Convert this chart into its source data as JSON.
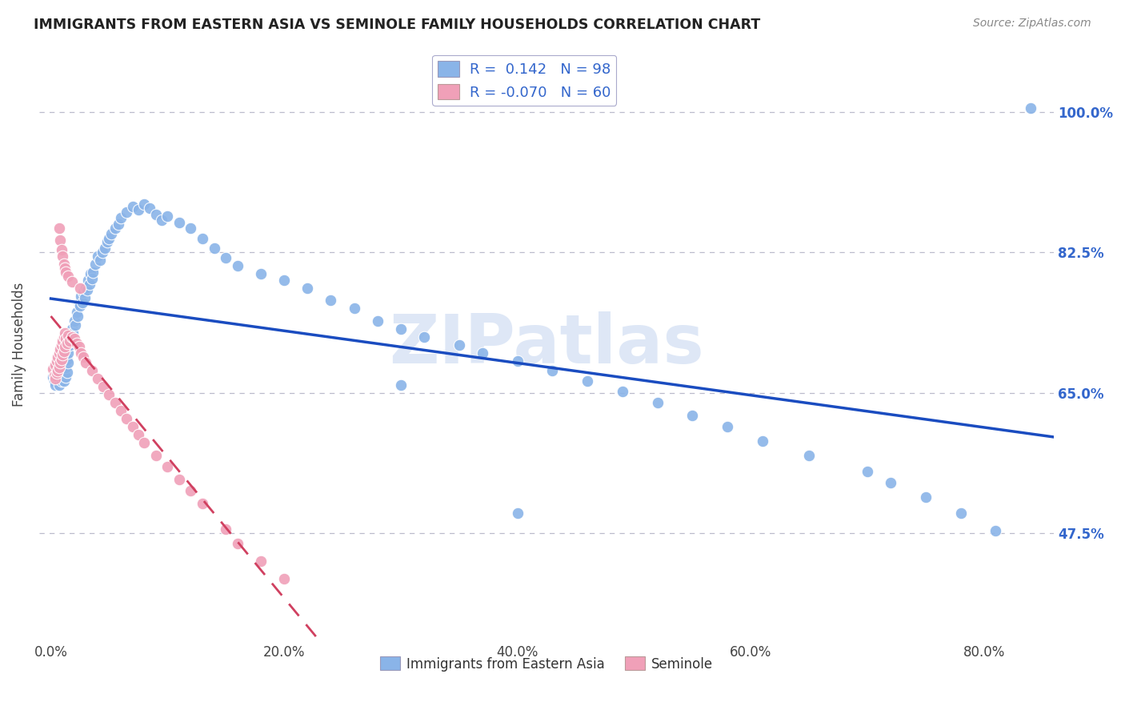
{
  "title": "IMMIGRANTS FROM EASTERN ASIA VS SEMINOLE FAMILY HOUSEHOLDS CORRELATION CHART",
  "source": "Source: ZipAtlas.com",
  "ylabel": "Family Households",
  "x_tick_labels": [
    "0.0%",
    "20.0%",
    "40.0%",
    "60.0%",
    "80.0%"
  ],
  "x_tick_positions": [
    0.0,
    0.2,
    0.4,
    0.6,
    0.8
  ],
  "y_tick_labels": [
    "47.5%",
    "65.0%",
    "82.5%",
    "100.0%"
  ],
  "y_tick_positions": [
    0.475,
    0.65,
    0.825,
    1.0
  ],
  "xlim": [
    -0.01,
    0.86
  ],
  "ylim": [
    0.34,
    1.08
  ],
  "legend_label_blue": "Immigrants from Eastern Asia",
  "legend_label_pink": "Seminole",
  "R_blue": 0.142,
  "N_blue": 98,
  "R_pink": -0.07,
  "N_pink": 60,
  "blue_color": "#8AB4E8",
  "pink_color": "#F0A0B8",
  "line_blue": "#1A4CC0",
  "line_pink": "#D04060",
  "watermark": "ZIPatlas",
  "blue_points_x": [
    0.002,
    0.003,
    0.004,
    0.004,
    0.005,
    0.006,
    0.007,
    0.007,
    0.008,
    0.008,
    0.009,
    0.009,
    0.01,
    0.01,
    0.011,
    0.011,
    0.012,
    0.012,
    0.013,
    0.013,
    0.014,
    0.014,
    0.015,
    0.015,
    0.016,
    0.016,
    0.017,
    0.018,
    0.019,
    0.02,
    0.021,
    0.022,
    0.023,
    0.024,
    0.025,
    0.026,
    0.027,
    0.028,
    0.029,
    0.03,
    0.031,
    0.032,
    0.033,
    0.034,
    0.035,
    0.036,
    0.038,
    0.04,
    0.042,
    0.044,
    0.046,
    0.048,
    0.05,
    0.052,
    0.055,
    0.058,
    0.06,
    0.065,
    0.07,
    0.075,
    0.08,
    0.085,
    0.09,
    0.095,
    0.1,
    0.11,
    0.12,
    0.13,
    0.14,
    0.15,
    0.16,
    0.18,
    0.2,
    0.22,
    0.24,
    0.26,
    0.28,
    0.3,
    0.32,
    0.35,
    0.37,
    0.4,
    0.43,
    0.46,
    0.49,
    0.52,
    0.55,
    0.58,
    0.61,
    0.65,
    0.7,
    0.72,
    0.75,
    0.78,
    0.81,
    0.3,
    0.4,
    0.84
  ],
  "blue_points_y": [
    0.67,
    0.665,
    0.66,
    0.672,
    0.668,
    0.675,
    0.66,
    0.68,
    0.672,
    0.683,
    0.665,
    0.678,
    0.67,
    0.685,
    0.665,
    0.68,
    0.675,
    0.688,
    0.67,
    0.682,
    0.676,
    0.692,
    0.688,
    0.7,
    0.71,
    0.722,
    0.715,
    0.73,
    0.725,
    0.74,
    0.735,
    0.75,
    0.745,
    0.76,
    0.758,
    0.77,
    0.762,
    0.775,
    0.768,
    0.78,
    0.778,
    0.79,
    0.785,
    0.798,
    0.792,
    0.8,
    0.81,
    0.82,
    0.815,
    0.825,
    0.83,
    0.838,
    0.842,
    0.848,
    0.855,
    0.86,
    0.868,
    0.875,
    0.882,
    0.878,
    0.885,
    0.88,
    0.872,
    0.865,
    0.87,
    0.862,
    0.855,
    0.842,
    0.83,
    0.818,
    0.808,
    0.798,
    0.79,
    0.78,
    0.765,
    0.755,
    0.74,
    0.73,
    0.72,
    0.71,
    0.7,
    0.69,
    0.678,
    0.665,
    0.652,
    0.638,
    0.622,
    0.608,
    0.59,
    0.572,
    0.552,
    0.538,
    0.52,
    0.5,
    0.478,
    0.66,
    0.5,
    1.005
  ],
  "pink_points_x": [
    0.002,
    0.003,
    0.004,
    0.004,
    0.005,
    0.005,
    0.006,
    0.006,
    0.007,
    0.007,
    0.008,
    0.008,
    0.009,
    0.009,
    0.01,
    0.01,
    0.011,
    0.011,
    0.012,
    0.012,
    0.013,
    0.014,
    0.015,
    0.016,
    0.018,
    0.02,
    0.022,
    0.024,
    0.026,
    0.028,
    0.03,
    0.035,
    0.04,
    0.045,
    0.05,
    0.055,
    0.06,
    0.065,
    0.07,
    0.075,
    0.08,
    0.09,
    0.1,
    0.11,
    0.12,
    0.13,
    0.15,
    0.16,
    0.18,
    0.2,
    0.007,
    0.008,
    0.009,
    0.01,
    0.011,
    0.012,
    0.013,
    0.015,
    0.018,
    0.025
  ],
  "pink_points_y": [
    0.68,
    0.672,
    0.685,
    0.668,
    0.69,
    0.675,
    0.695,
    0.678,
    0.7,
    0.682,
    0.705,
    0.688,
    0.71,
    0.692,
    0.715,
    0.698,
    0.72,
    0.702,
    0.725,
    0.708,
    0.718,
    0.712,
    0.722,
    0.715,
    0.72,
    0.718,
    0.712,
    0.708,
    0.7,
    0.695,
    0.688,
    0.678,
    0.668,
    0.658,
    0.648,
    0.638,
    0.628,
    0.618,
    0.608,
    0.598,
    0.588,
    0.572,
    0.558,
    0.542,
    0.528,
    0.512,
    0.48,
    0.462,
    0.44,
    0.418,
    0.855,
    0.84,
    0.828,
    0.82,
    0.81,
    0.805,
    0.8,
    0.795,
    0.788,
    0.78
  ]
}
